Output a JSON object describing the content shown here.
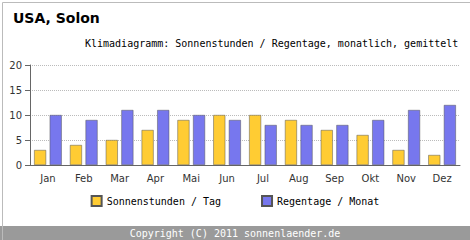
{
  "chart_data": {
    "type": "bar",
    "title": "USA, Solon",
    "subtitle": "Klimadiagramm: Sonnenstunden / Regentage, monatlich, gemittelt",
    "categories": [
      "Jan",
      "Feb",
      "Mar",
      "Apr",
      "Mai",
      "Jun",
      "Jul",
      "Aug",
      "Sep",
      "Okt",
      "Nov",
      "Dez"
    ],
    "series": [
      {
        "name": "Sonnenstunden / Tag",
        "color": "#ffcc33",
        "values": [
          3,
          4,
          5,
          7,
          9,
          10,
          10,
          9,
          7,
          6,
          3,
          2
        ]
      },
      {
        "name": "Regentage / Monat",
        "color": "#7777ee",
        "values": [
          10,
          9,
          11,
          11,
          10,
          9,
          8,
          8,
          8,
          9,
          11,
          12
        ]
      }
    ],
    "ylim": [
      0,
      20
    ],
    "yticks": [
      0,
      5,
      10,
      15,
      20
    ],
    "grid": true,
    "legend": "bottom",
    "annotations": [
      "Copyright (C) 2011 sonnenlaender.de"
    ]
  }
}
